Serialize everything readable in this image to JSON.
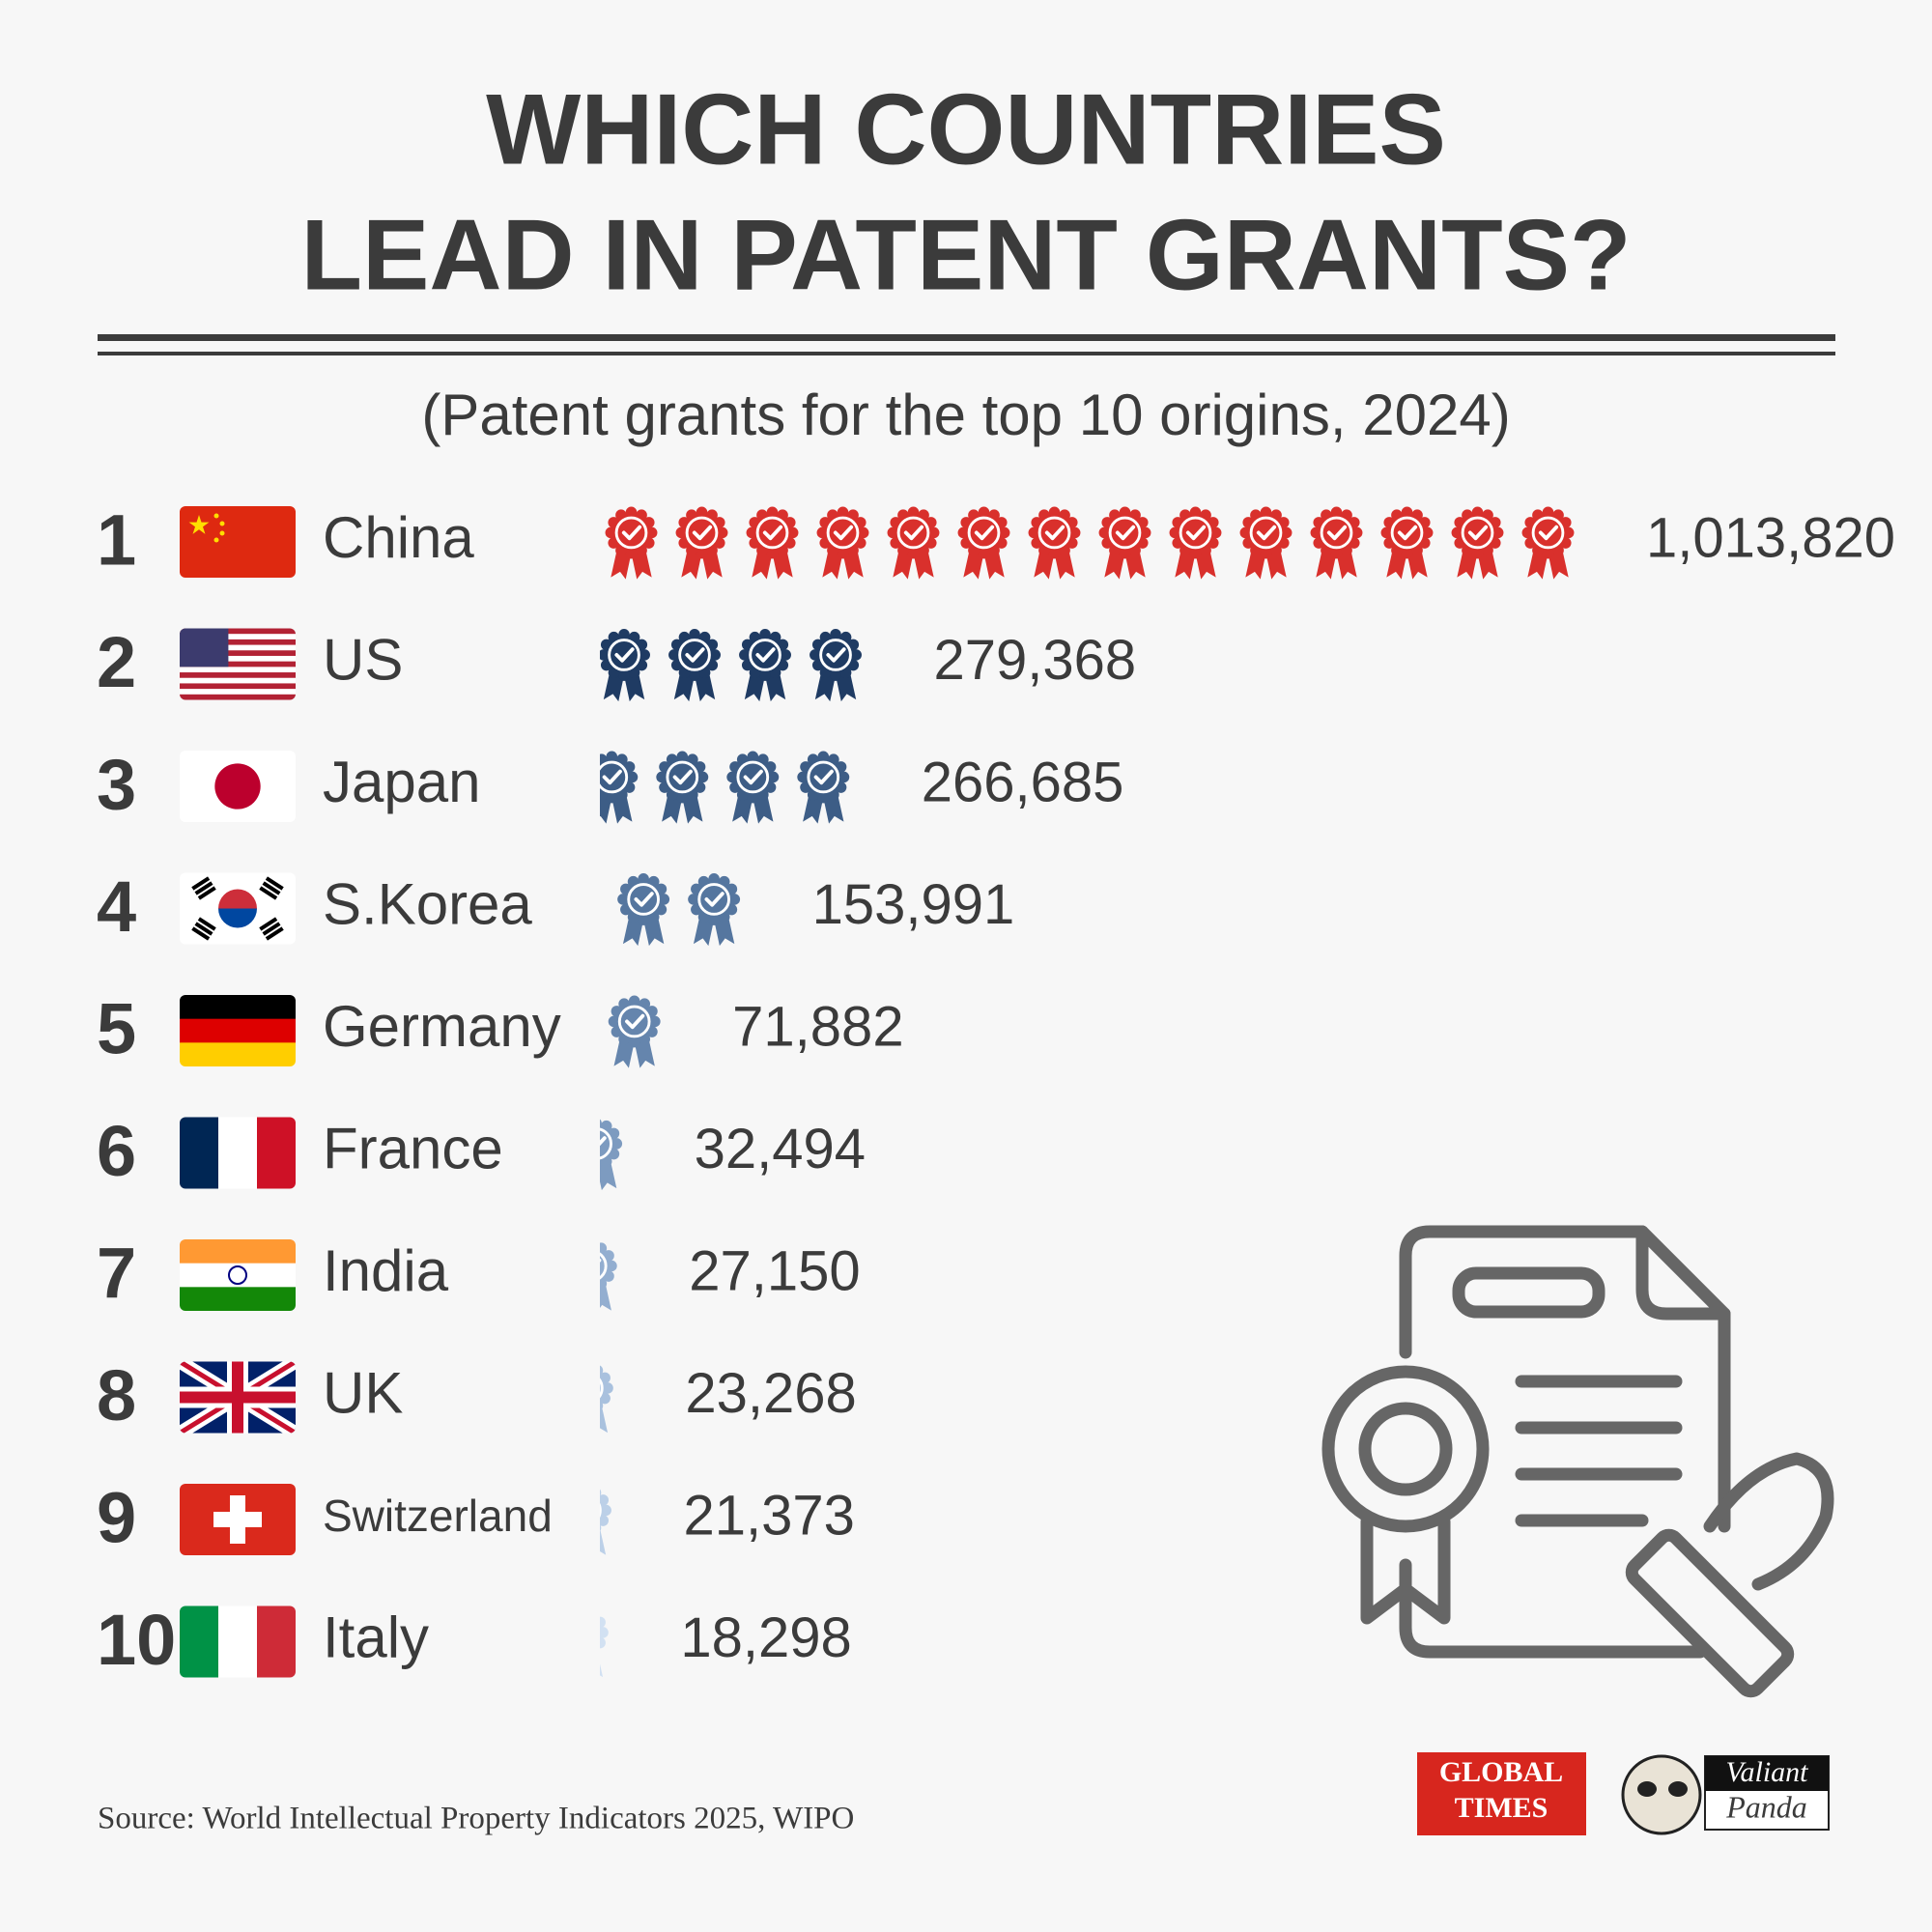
{
  "chart_data": {
    "type": "pictogram",
    "title": [
      "WHICH COUNTRIES",
      "LEAD IN PATENT GRANTS?"
    ],
    "subtitle": "(Patent grants for the top 10 origins, 2024)",
    "ranks": [
      1,
      2,
      3,
      4,
      5,
      6,
      7,
      8,
      9,
      10
    ],
    "categories": [
      "China",
      "US",
      "Japan",
      "S.Korea",
      "Germany",
      "France",
      "India",
      "UK",
      "Switzerland",
      "Italy"
    ],
    "values": [
      1013820,
      279368,
      266685,
      153991,
      71882,
      32494,
      27150,
      23268,
      21373,
      18298
    ],
    "value_labels": [
      "1,013,820",
      "279,368",
      "266,685",
      "153,991",
      "71,882",
      "32,494",
      "27,150",
      "23,268",
      "21,373",
      "18,298"
    ],
    "colors": [
      "#d9302c",
      "#1f3b63",
      "#3d5d86",
      "#55769f",
      "#6585ad",
      "#7d9bc0",
      "#93aed0",
      "#a9c1de",
      "#bcd0e8",
      "#d2e1f2"
    ]
  },
  "source": "Source: World Intellectual Property Indicators 2025, WIPO",
  "logos": {
    "global_times": [
      "GLOBAL",
      "TIMES"
    ],
    "valiant_panda": [
      "Valiant",
      "Panda"
    ]
  }
}
